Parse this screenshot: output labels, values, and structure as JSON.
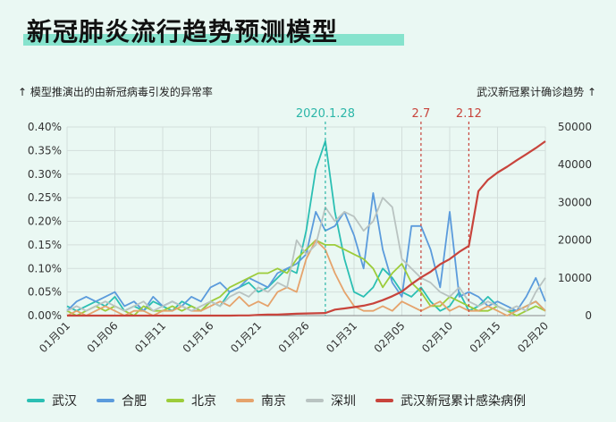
{
  "title": "新冠肺炎流行趋势预测模型",
  "left_axis_note": "↑ 模型推演出的由新冠病毒引发的异常率",
  "right_axis_note": "武汉新冠累计确诊趋势 ↑",
  "chart_data": {
    "type": "line",
    "title": "新冠肺炎流行趋势预测模型",
    "y_left": {
      "label": "模型推演出的由新冠病毒引发的异常率",
      "range": [
        0,
        0.4
      ],
      "ticks": [
        "0.00%",
        "0.05%",
        "0.10%",
        "0.15%",
        "0.20%",
        "0.25%",
        "0.30%",
        "0.35%",
        "0.40%"
      ]
    },
    "y_right": {
      "label": "武汉新冠累计确诊趋势",
      "range": [
        0,
        50000
      ],
      "ticks": [
        "0",
        "10000",
        "20000",
        "30000",
        "40000",
        "50000"
      ]
    },
    "x_tick_labels": [
      "01月01",
      "01月06",
      "01月11",
      "01月16",
      "01月21",
      "01月26",
      "01月31",
      "02月05",
      "02月10",
      "02月15",
      "02月20"
    ],
    "annotations": [
      {
        "label": "2020.1.28",
        "day_index": 27,
        "color": "#2bb6a8"
      },
      {
        "label": "2.7",
        "day_index": 37,
        "color": "#c8443c"
      },
      {
        "label": "2.12",
        "day_index": 42,
        "color": "#c8443c"
      }
    ],
    "series": [
      {
        "name": "武汉",
        "axis": "left",
        "color": "#2bbfb3",
        "values": [
          0.02,
          0.01,
          0.02,
          0.03,
          0.02,
          0.04,
          0.01,
          0.02,
          0.01,
          0.03,
          0.02,
          0.01,
          0.03,
          0.02,
          0.01,
          0.03,
          0.02,
          0.05,
          0.06,
          0.07,
          0.05,
          0.06,
          0.08,
          0.1,
          0.09,
          0.18,
          0.31,
          0.37,
          0.22,
          0.12,
          0.05,
          0.04,
          0.06,
          0.1,
          0.08,
          0.05,
          0.04,
          0.06,
          0.03,
          0.01,
          0.02,
          0.05,
          0.01,
          0.02,
          0.04,
          0.02,
          0.01,
          0.01,
          0.02,
          0.03,
          0.01
        ]
      },
      {
        "name": "合肥",
        "axis": "left",
        "color": "#5b9bdc",
        "values": [
          0.01,
          0.03,
          0.04,
          0.03,
          0.04,
          0.05,
          0.02,
          0.03,
          0.01,
          0.04,
          0.02,
          0.03,
          0.02,
          0.04,
          0.03,
          0.06,
          0.07,
          0.05,
          0.06,
          0.08,
          0.07,
          0.06,
          0.09,
          0.1,
          0.11,
          0.13,
          0.22,
          0.18,
          0.19,
          0.22,
          0.17,
          0.1,
          0.26,
          0.14,
          0.07,
          0.04,
          0.19,
          0.19,
          0.14,
          0.06,
          0.22,
          0.04,
          0.05,
          0.04,
          0.02,
          0.03,
          0.02,
          0.01,
          0.04,
          0.08,
          0.03
        ]
      },
      {
        "name": "北京",
        "axis": "left",
        "color": "#9ccc3a",
        "values": [
          0.01,
          0.0,
          0.01,
          0.02,
          0.01,
          0.02,
          0.01,
          0.0,
          0.02,
          0.01,
          0.01,
          0.02,
          0.01,
          0.02,
          0.01,
          0.03,
          0.04,
          0.06,
          0.07,
          0.08,
          0.09,
          0.09,
          0.1,
          0.09,
          0.12,
          0.14,
          0.16,
          0.15,
          0.15,
          0.14,
          0.13,
          0.12,
          0.1,
          0.06,
          0.09,
          0.11,
          0.07,
          0.05,
          0.02,
          0.02,
          0.04,
          0.03,
          0.02,
          0.01,
          0.01,
          0.02,
          0.01,
          0.0,
          0.01,
          0.02,
          0.01
        ]
      },
      {
        "name": "南京",
        "axis": "left",
        "color": "#e5a36c",
        "values": [
          0.0,
          0.01,
          0.0,
          0.01,
          0.02,
          0.01,
          0.0,
          0.01,
          0.01,
          0.0,
          0.01,
          0.01,
          0.02,
          0.01,
          0.01,
          0.02,
          0.03,
          0.02,
          0.04,
          0.02,
          0.03,
          0.02,
          0.05,
          0.06,
          0.05,
          0.12,
          0.16,
          0.14,
          0.09,
          0.05,
          0.02,
          0.01,
          0.01,
          0.02,
          0.01,
          0.03,
          0.02,
          0.01,
          0.02,
          0.03,
          0.01,
          0.02,
          0.01,
          0.01,
          0.02,
          0.01,
          0.0,
          0.01,
          0.02,
          0.03,
          0.01
        ]
      },
      {
        "name": "深圳",
        "axis": "left",
        "color": "#b9c3c1",
        "values": [
          0.01,
          0.02,
          0.01,
          0.02,
          0.03,
          0.02,
          0.01,
          0.02,
          0.03,
          0.01,
          0.02,
          0.03,
          0.02,
          0.01,
          0.02,
          0.03,
          0.02,
          0.04,
          0.05,
          0.04,
          0.06,
          0.05,
          0.07,
          0.06,
          0.16,
          0.13,
          0.15,
          0.23,
          0.2,
          0.22,
          0.21,
          0.18,
          0.2,
          0.25,
          0.23,
          0.12,
          0.1,
          0.08,
          0.07,
          0.05,
          0.04,
          0.06,
          0.03,
          0.02,
          0.03,
          0.02,
          0.01,
          0.02,
          0.01,
          0.05,
          0.08
        ]
      },
      {
        "name": "武汉新冠累计感染病例",
        "axis": "right",
        "color": "#c8443c",
        "values": [
          0,
          0,
          0,
          0,
          0,
          0,
          0,
          0,
          0,
          0,
          0,
          0,
          0,
          0,
          0,
          0,
          0,
          0,
          41,
          45,
          198,
          258,
          270,
          375,
          495,
          572,
          618,
          698,
          1590,
          1905,
          2261,
          2639,
          3215,
          4109,
          5142,
          6384,
          8351,
          10117,
          11618,
          13603,
          14982,
          16902,
          18454,
          32994,
          35991,
          37914,
          39462,
          41152,
          42752,
          44412,
          46201
        ]
      }
    ]
  },
  "legend": [
    {
      "label": "武汉",
      "color": "#2bbfb3"
    },
    {
      "label": "合肥",
      "color": "#5b9bdc"
    },
    {
      "label": "北京",
      "color": "#9ccc3a"
    },
    {
      "label": "南京",
      "color": "#e5a36c"
    },
    {
      "label": "深圳",
      "color": "#b9c3c1"
    },
    {
      "label": "武汉新冠累计感染病例",
      "color": "#c8443c"
    }
  ]
}
